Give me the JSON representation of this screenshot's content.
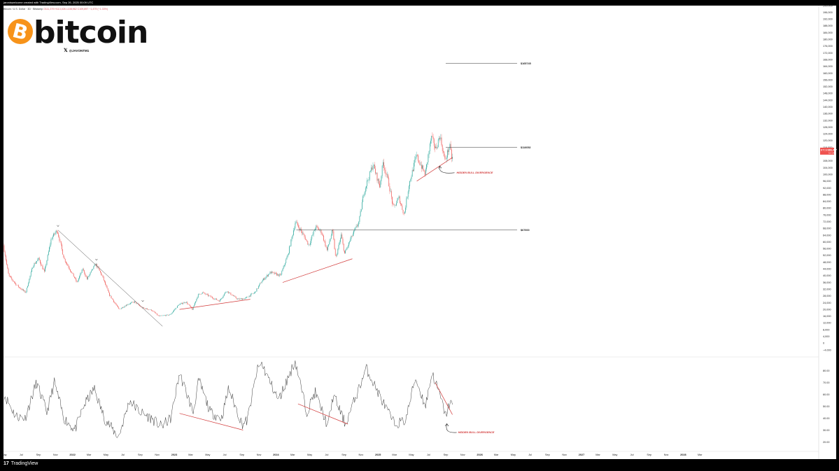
{
  "header": {
    "top_caption": "jaroniswelcome created with TradingView.com, Sep 26, 2025 00:09 UTC",
    "legend": "Bitcoin / U.S. Dollar · 3D · Bitstamp",
    "legend_values": "O111,379 H113,026 L108,962 C109,897 −1,479 (−1.33%)"
  },
  "branding": {
    "logo_text": "bitcoin",
    "handle": "@JAVONTM1",
    "footer": "TradingView",
    "footer_logo": "17"
  },
  "price_badge": {
    "symbol": "BTCUSD",
    "value": "111,437",
    "sub": "1d 12h"
  },
  "colors": {
    "bull": "#26a69a",
    "bear": "#ef5350",
    "annotation": "#d23a3a",
    "badge": "#ef5350"
  },
  "chart_data": [
    {
      "type": "candlestick",
      "title": "",
      "ylim": [
        -4000,
        200000
      ],
      "y_ticks": [
        {
          "v": 200000,
          "label": "200,000"
        },
        {
          "v": 196000,
          "label": "196,000"
        },
        {
          "v": 192000,
          "label": "192,000"
        },
        {
          "v": 188000,
          "label": "188,000"
        },
        {
          "v": 184000,
          "label": "184,000"
        },
        {
          "v": 180000,
          "label": "180,000"
        },
        {
          "v": 176000,
          "label": "176,000"
        },
        {
          "v": 172000,
          "label": "172,000"
        },
        {
          "v": 168000,
          "label": "168,000"
        },
        {
          "v": 164000,
          "label": "164,000"
        },
        {
          "v": 160000,
          "label": "160,000"
        },
        {
          "v": 156000,
          "label": "156,000"
        },
        {
          "v": 152000,
          "label": "152,000"
        },
        {
          "v": 148000,
          "label": "148,000"
        },
        {
          "v": 144000,
          "label": "144,000"
        },
        {
          "v": 140000,
          "label": "140,000"
        },
        {
          "v": 136000,
          "label": "136,000"
        },
        {
          "v": 132000,
          "label": "132,000"
        },
        {
          "v": 128000,
          "label": "128,000"
        },
        {
          "v": 124000,
          "label": "124,000"
        },
        {
          "v": 120000,
          "label": "120,000"
        },
        {
          "v": 116000,
          "label": "116,000"
        },
        {
          "v": 108000,
          "label": "108,000"
        },
        {
          "v": 104000,
          "label": "104,000"
        },
        {
          "v": 100000,
          "label": "100,000"
        },
        {
          "v": 96000,
          "label": "96,000"
        },
        {
          "v": 92000,
          "label": "92,000"
        },
        {
          "v": 88000,
          "label": "88,000"
        },
        {
          "v": 84000,
          "label": "84,000"
        },
        {
          "v": 80000,
          "label": "80,000"
        },
        {
          "v": 76000,
          "label": "76,000"
        },
        {
          "v": 72000,
          "label": "72,000"
        },
        {
          "v": 68000,
          "label": "68,000"
        },
        {
          "v": 64000,
          "label": "64,000"
        },
        {
          "v": 60000,
          "label": "60,000"
        },
        {
          "v": 56000,
          "label": "56,000"
        },
        {
          "v": 52000,
          "label": "52,000"
        },
        {
          "v": 48000,
          "label": "48,000"
        },
        {
          "v": 44000,
          "label": "44,000"
        },
        {
          "v": 40000,
          "label": "40,000"
        },
        {
          "v": 36000,
          "label": "36,000"
        },
        {
          "v": 32000,
          "label": "32,000"
        },
        {
          "v": 28000,
          "label": "28,000"
        },
        {
          "v": 24000,
          "label": "24,000"
        },
        {
          "v": 20000,
          "label": "20,000"
        },
        {
          "v": 16000,
          "label": "16,000"
        },
        {
          "v": 12000,
          "label": "12,000"
        },
        {
          "v": 8000,
          "label": "8,000"
        },
        {
          "v": 4000,
          "label": "4,000"
        },
        {
          "v": 0,
          "label": "0"
        },
        {
          "v": -4000,
          "label": "−4,000"
        }
      ],
      "x_range": [
        "2021-05-01",
        "2029-05-01"
      ],
      "x_ticks": [
        {
          "d": "2021-05-01",
          "label": "May"
        },
        {
          "d": "2021-07-01",
          "label": "Jul"
        },
        {
          "d": "2021-09-01",
          "label": "Sep"
        },
        {
          "d": "2021-11-01",
          "label": "Nov"
        },
        {
          "d": "2022-01-01",
          "label": "2022",
          "year": true
        },
        {
          "d": "2022-03-01",
          "label": "Mar"
        },
        {
          "d": "2022-05-01",
          "label": "May"
        },
        {
          "d": "2022-07-01",
          "label": "Jul"
        },
        {
          "d": "2022-09-01",
          "label": "Sep"
        },
        {
          "d": "2022-11-01",
          "label": "Nov"
        },
        {
          "d": "2023-01-01",
          "label": "2023",
          "year": true
        },
        {
          "d": "2023-03-01",
          "label": "Mar"
        },
        {
          "d": "2023-05-01",
          "label": "May"
        },
        {
          "d": "2023-07-01",
          "label": "Jul"
        },
        {
          "d": "2023-09-01",
          "label": "Sep"
        },
        {
          "d": "2023-11-01",
          "label": "Nov"
        },
        {
          "d": "2024-01-01",
          "label": "2024",
          "year": true
        },
        {
          "d": "2024-03-01",
          "label": "Mar"
        },
        {
          "d": "2024-05-01",
          "label": "May"
        },
        {
          "d": "2024-07-01",
          "label": "Jul"
        },
        {
          "d": "2024-09-01",
          "label": "Sep"
        },
        {
          "d": "2024-11-01",
          "label": "Nov"
        },
        {
          "d": "2025-01-01",
          "label": "2025",
          "year": true
        },
        {
          "d": "2025-03-01",
          "label": "Mar"
        },
        {
          "d": "2025-05-01",
          "label": "May"
        },
        {
          "d": "2025-07-01",
          "label": "Jul"
        },
        {
          "d": "2025-09-01",
          "label": "Sep"
        },
        {
          "d": "2025-11-01",
          "label": "Nov"
        },
        {
          "d": "2026-01-01",
          "label": "2026",
          "year": true
        },
        {
          "d": "2026-03-01",
          "label": "Mar"
        },
        {
          "d": "2026-05-01",
          "label": "May"
        },
        {
          "d": "2026-07-01",
          "label": "Jul"
        },
        {
          "d": "2026-09-01",
          "label": "Sep"
        },
        {
          "d": "2026-11-01",
          "label": "Nov"
        },
        {
          "d": "2027-01-01",
          "label": "2027",
          "year": true
        },
        {
          "d": "2027-03-01",
          "label": "Mar"
        },
        {
          "d": "2027-05-01",
          "label": "May"
        },
        {
          "d": "2027-07-01",
          "label": "Jul"
        },
        {
          "d": "2027-09-01",
          "label": "Sep"
        },
        {
          "d": "2027-11-01",
          "label": "Nov"
        },
        {
          "d": "2028-01-01",
          "label": "2028",
          "year": true
        },
        {
          "d": "2028-03-01",
          "label": "Mar"
        }
      ],
      "price_path": [
        [
          "2021-05-01",
          58000
        ],
        [
          "2021-05-20",
          40000
        ],
        [
          "2021-06-20",
          34000
        ],
        [
          "2021-07-20",
          30000
        ],
        [
          "2021-08-15",
          46000
        ],
        [
          "2021-09-05",
          50000
        ],
        [
          "2021-09-25",
          42000
        ],
        [
          "2021-10-20",
          62000
        ],
        [
          "2021-11-10",
          67000
        ],
        [
          "2021-12-05",
          50000
        ],
        [
          "2022-01-20",
          36000
        ],
        [
          "2022-02-10",
          44000
        ],
        [
          "2022-02-25",
          38000
        ],
        [
          "2022-03-28",
          47000
        ],
        [
          "2022-04-20",
          40000
        ],
        [
          "2022-05-15",
          29000
        ],
        [
          "2022-06-20",
          20000
        ],
        [
          "2022-07-20",
          23000
        ],
        [
          "2022-08-15",
          24500
        ],
        [
          "2022-09-10",
          21000
        ],
        [
          "2022-10-15",
          19500
        ],
        [
          "2022-11-10",
          16000
        ],
        [
          "2022-12-20",
          16800
        ],
        [
          "2023-01-20",
          22800
        ],
        [
          "2023-02-15",
          24500
        ],
        [
          "2023-03-10",
          20000
        ],
        [
          "2023-03-30",
          28500
        ],
        [
          "2023-04-15",
          30000
        ],
        [
          "2023-05-20",
          27000
        ],
        [
          "2023-06-15",
          25000
        ],
        [
          "2023-07-10",
          31000
        ],
        [
          "2023-08-20",
          26000
        ],
        [
          "2023-09-15",
          26500
        ],
        [
          "2023-10-20",
          30000
        ],
        [
          "2023-11-15",
          37000
        ],
        [
          "2023-12-15",
          42000
        ],
        [
          "2024-01-20",
          40000
        ],
        [
          "2024-02-15",
          52000
        ],
        [
          "2024-03-14",
          72000
        ],
        [
          "2024-04-15",
          63000
        ],
        [
          "2024-05-01",
          58000
        ],
        [
          "2024-05-25",
          69000
        ],
        [
          "2024-06-15",
          66000
        ],
        [
          "2024-07-05",
          55000
        ],
        [
          "2024-07-25",
          67000
        ],
        [
          "2024-08-05",
          50000
        ],
        [
          "2024-08-25",
          64000
        ],
        [
          "2024-09-06",
          53000
        ],
        [
          "2024-10-01",
          63000
        ],
        [
          "2024-10-28",
          72000
        ],
        [
          "2024-11-15",
          90000
        ],
        [
          "2024-12-17",
          106000
        ],
        [
          "2025-01-10",
          93000
        ],
        [
          "2025-01-22",
          107000
        ],
        [
          "2025-02-10",
          96000
        ],
        [
          "2025-02-28",
          80000
        ],
        [
          "2025-03-20",
          86000
        ],
        [
          "2025-04-08",
          76000
        ],
        [
          "2025-04-25",
          94000
        ],
        [
          "2025-05-22",
          111000
        ],
        [
          "2025-06-22",
          100000
        ],
        [
          "2025-07-14",
          122000
        ],
        [
          "2025-07-30",
          115000
        ],
        [
          "2025-08-14",
          123000
        ],
        [
          "2025-09-01",
          108000
        ],
        [
          "2025-09-18",
          117000
        ],
        [
          "2025-09-25",
          109897
        ]
      ],
      "horizontal_levels": [
        {
          "value": 165745,
          "label": "$165745",
          "from": "2025-09-01"
        },
        {
          "value": 116052,
          "label": "$116052",
          "from": "2025-09-01"
        },
        {
          "value": 67000,
          "label": "$67000",
          "from": "2024-03-14"
        }
      ],
      "trendlines": [
        {
          "color": "black",
          "points": [
            [
              "2021-11-10",
              67000
            ],
            [
              "2022-11-20",
              10000
            ]
          ]
        },
        {
          "color": "red",
          "points": [
            [
              "2023-01-20",
              20000
            ],
            [
              "2023-10-01",
              26000
            ]
          ]
        },
        {
          "color": "red",
          "points": [
            [
              "2024-01-25",
              36000
            ],
            [
              "2024-10-01",
              50000
            ]
          ]
        },
        {
          "color": "red",
          "points": [
            [
              "2025-05-20",
              96000
            ],
            [
              "2025-09-25",
              110000
            ]
          ]
        }
      ],
      "markers": [
        {
          "d": "2021-11-10",
          "v": 69500
        },
        {
          "d": "2022-03-28",
          "v": 49500
        },
        {
          "d": "2022-09-10",
          "v": 25000
        }
      ],
      "annotations": [
        {
          "label": "HIDDEN BULL DIVERGENCE",
          "d": "2025-10-10",
          "v": 101000
        }
      ]
    },
    {
      "type": "line",
      "title": "",
      "ylim": [
        15,
        85
      ],
      "y_ticks": [
        {
          "v": 80,
          "label": "80.00"
        },
        {
          "v": 70,
          "label": "70.00"
        },
        {
          "v": 60,
          "label": "60.00"
        },
        {
          "v": 50,
          "label": "50.00"
        },
        {
          "v": 40,
          "label": "40.00"
        },
        {
          "v": 30,
          "label": "30.00"
        },
        {
          "v": 20,
          "label": "20.00"
        }
      ],
      "rsi_path": [
        [
          "2021-05-01",
          60
        ],
        [
          "2021-06-10",
          42
        ],
        [
          "2021-07-15",
          40
        ],
        [
          "2021-08-25",
          70
        ],
        [
          "2021-10-01",
          45
        ],
        [
          "2021-10-28",
          70
        ],
        [
          "2021-12-01",
          40
        ],
        [
          "2022-01-10",
          30
        ],
        [
          "2022-02-10",
          50
        ],
        [
          "2022-03-20",
          65
        ],
        [
          "2022-04-25",
          40
        ],
        [
          "2022-06-15",
          24
        ],
        [
          "2022-07-25",
          55
        ],
        [
          "2022-09-01",
          45
        ],
        [
          "2022-10-10",
          40
        ],
        [
          "2022-11-15",
          33
        ],
        [
          "2022-12-20",
          40
        ],
        [
          "2023-01-20",
          78
        ],
        [
          "2023-03-10",
          45
        ],
        [
          "2023-03-30",
          72
        ],
        [
          "2023-05-10",
          45
        ],
        [
          "2023-06-20",
          40
        ],
        [
          "2023-07-15",
          65
        ],
        [
          "2023-09-01",
          35
        ],
        [
          "2023-09-20",
          38
        ],
        [
          "2023-10-25",
          80
        ],
        [
          "2023-11-10",
          86
        ],
        [
          "2024-01-10",
          55
        ],
        [
          "2024-03-10",
          88
        ],
        [
          "2024-04-20",
          45
        ],
        [
          "2024-05-20",
          62
        ],
        [
          "2024-07-05",
          33
        ],
        [
          "2024-07-25",
          60
        ],
        [
          "2024-09-06",
          35
        ],
        [
          "2024-10-20",
          62
        ],
        [
          "2024-11-20",
          82
        ],
        [
          "2025-01-15",
          55
        ],
        [
          "2025-03-01",
          35
        ],
        [
          "2025-04-10",
          38
        ],
        [
          "2025-05-15",
          74
        ],
        [
          "2025-06-20",
          50
        ],
        [
          "2025-07-14",
          78
        ],
        [
          "2025-08-10",
          60
        ],
        [
          "2025-09-01",
          42
        ],
        [
          "2025-09-18",
          55
        ],
        [
          "2025-09-25",
          49
        ]
      ],
      "divergence_lines": [
        {
          "points": [
            [
              "2023-01-20",
              44
            ],
            [
              "2023-09-05",
              30
            ]
          ]
        },
        {
          "points": [
            [
              "2024-03-20",
              52
            ],
            [
              "2024-09-15",
              35
            ]
          ]
        },
        {
          "points": [
            [
              "2025-07-25",
              70
            ],
            [
              "2025-09-25",
              43
            ]
          ]
        }
      ],
      "annotations": [
        {
          "label": "HIDDEN BULL DIVERGENCE",
          "d": "2025-09-10",
          "v": 28
        }
      ]
    }
  ]
}
